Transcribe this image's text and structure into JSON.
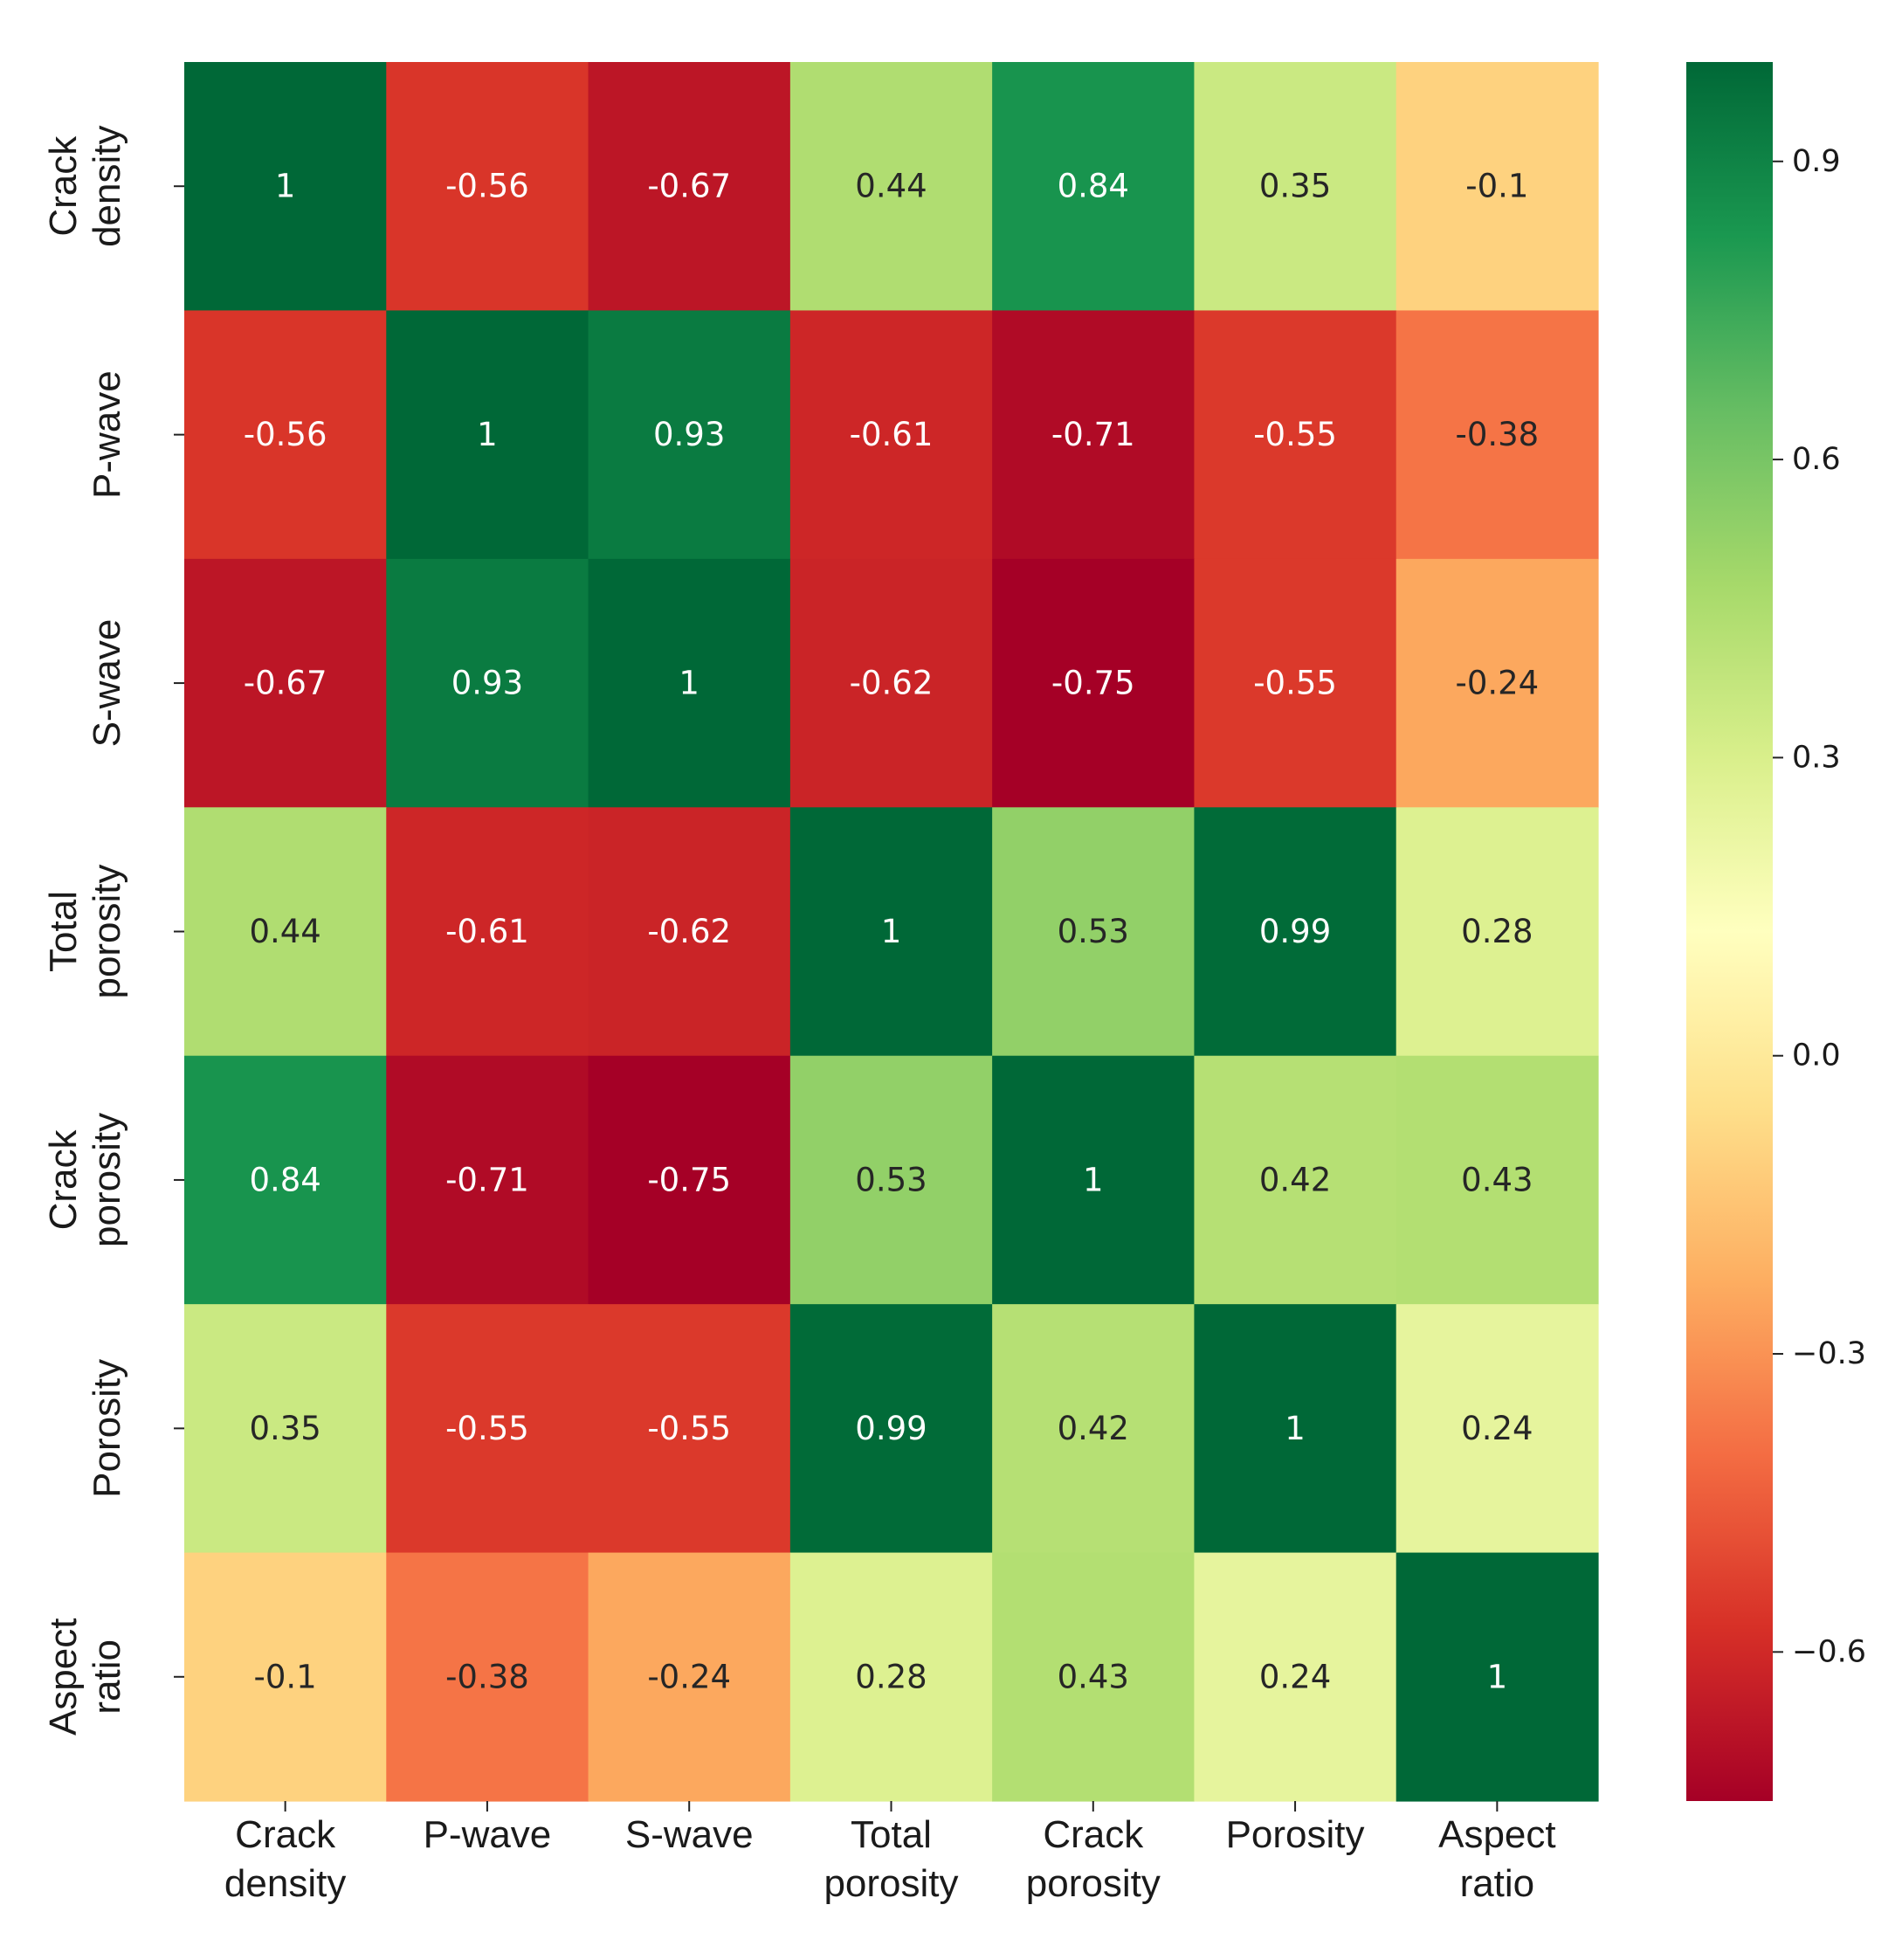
{
  "chart_data": {
    "type": "heatmap",
    "title": "",
    "variables": [
      [
        "Crack",
        "density"
      ],
      [
        "P-wave"
      ],
      [
        "S-wave"
      ],
      [
        "Total",
        "porosity"
      ],
      [
        "Crack",
        "porosity"
      ],
      [
        "Porosity"
      ],
      [
        "Aspect",
        "ratio"
      ]
    ],
    "values": [
      [
        1,
        -0.56,
        -0.67,
        0.44,
        0.84,
        0.35,
        -0.1
      ],
      [
        -0.56,
        1,
        0.93,
        -0.61,
        -0.71,
        -0.55,
        -0.38
      ],
      [
        -0.67,
        0.93,
        1,
        -0.62,
        -0.75,
        -0.55,
        -0.24
      ],
      [
        0.44,
        -0.61,
        -0.62,
        1,
        0.53,
        0.99,
        0.28
      ],
      [
        0.84,
        -0.71,
        -0.75,
        0.53,
        1,
        0.42,
        0.43
      ],
      [
        0.35,
        -0.55,
        -0.55,
        0.99,
        0.42,
        1,
        0.24
      ],
      [
        -0.1,
        -0.38,
        -0.24,
        0.28,
        0.43,
        0.24,
        1
      ]
    ],
    "value_labels": [
      [
        "1",
        "-0.56",
        "-0.67",
        "0.44",
        "0.84",
        "0.35",
        "-0.1"
      ],
      [
        "-0.56",
        "1",
        "0.93",
        "-0.61",
        "-0.71",
        "-0.55",
        "-0.38"
      ],
      [
        "-0.67",
        "0.93",
        "1",
        "-0.62",
        "-0.75",
        "-0.55",
        "-0.24"
      ],
      [
        "0.44",
        "-0.61",
        "-0.62",
        "1",
        "0.53",
        "0.99",
        "0.28"
      ],
      [
        "0.84",
        "-0.71",
        "-0.75",
        "0.53",
        "1",
        "0.42",
        "0.43"
      ],
      [
        "0.35",
        "-0.55",
        "-0.55",
        "0.99",
        "0.42",
        "1",
        "0.24"
      ],
      [
        "-0.1",
        "-0.38",
        "-0.24",
        "0.28",
        "0.43",
        "0.24",
        "1"
      ]
    ],
    "colormap": "RdYlGn",
    "colorbar": {
      "range": [
        -0.75,
        1.0
      ],
      "ticks": [
        0.9,
        0.6,
        0.3,
        0.0,
        -0.3,
        -0.6
      ],
      "tick_labels": [
        "0.9",
        "0.6",
        "0.3",
        "0.0",
        "−0.3",
        "−0.6"
      ],
      "placement": "right"
    },
    "colormap_stops": [
      "#a50026",
      "#d73027",
      "#f46d43",
      "#fdae61",
      "#fee08b",
      "#ffffbf",
      "#d9ef8b",
      "#a6d96a",
      "#66bd63",
      "#1a9850",
      "#006837"
    ],
    "annotation_text_colors": {
      "light": "#ffffff",
      "dark": "#262626"
    }
  }
}
